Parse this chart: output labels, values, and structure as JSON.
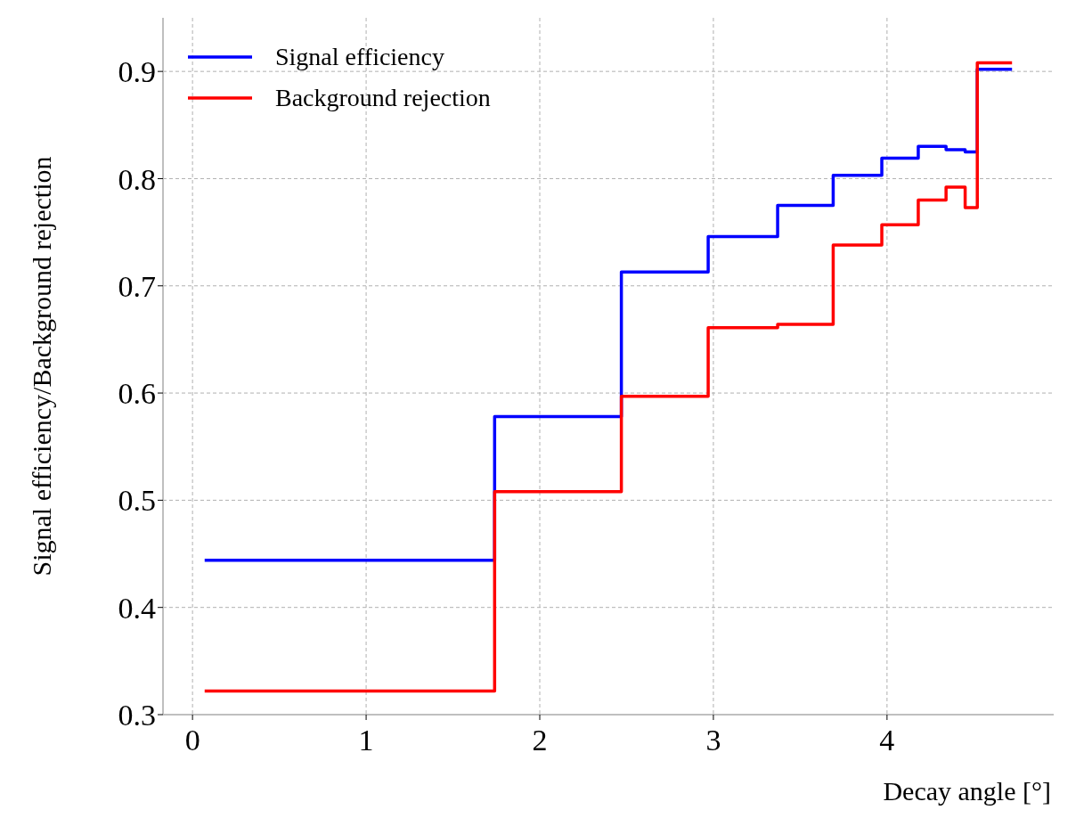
{
  "chart_data": {
    "type": "step",
    "xlabel": "Decay angle [°]",
    "ylabel": "Signal efficiency/Background rejection",
    "x": [
      0.07,
      1.74,
      2.47,
      2.97,
      3.37,
      3.69,
      3.97,
      4.18,
      4.34,
      4.45,
      4.52,
      4.72
    ],
    "series": [
      {
        "name": "Signal efficiency",
        "color": "#0000ff",
        "values": [
          0.444,
          0.578,
          0.713,
          0.746,
          0.775,
          0.803,
          0.819,
          0.83,
          0.827,
          0.825,
          0.902,
          0.902
        ]
      },
      {
        "name": "Background rejection",
        "color": "#ff0000",
        "values": [
          0.322,
          0.508,
          0.597,
          0.661,
          0.664,
          0.738,
          0.757,
          0.78,
          0.792,
          0.773,
          0.908,
          0.908
        ]
      }
    ],
    "xlim": [
      -0.17,
      4.96
    ],
    "ylim": [
      0.3,
      0.95
    ],
    "xticks": [
      0,
      1,
      2,
      3,
      4
    ],
    "yticks": [
      0.3,
      0.4,
      0.5,
      0.6,
      0.7,
      0.8,
      0.9
    ],
    "grid": true,
    "legend": "top left"
  }
}
